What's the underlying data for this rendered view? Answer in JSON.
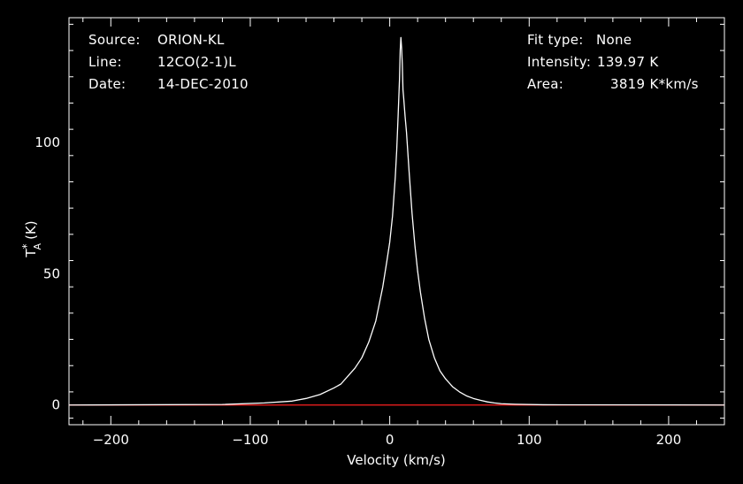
{
  "header": {
    "source_label": "Source:",
    "source_value": "ORION-KL",
    "line_label": "Line:",
    "line_value": "12CO(2-1)L",
    "date_label": "Date:",
    "date_value": "14-DEC-2010",
    "fit_label": "Fit type:",
    "fit_value": "None",
    "intensity_label": "Intensity:",
    "intensity_value": "139.97 K",
    "area_label": "Area:",
    "area_value": "3819 K*km/s"
  },
  "colors": {
    "background": "#000000",
    "spectrum": "#ffffff",
    "baseline": "#ff2020",
    "axes": "#ffffff"
  },
  "chart_data": {
    "type": "line",
    "xlabel": "Velocity (km/s)",
    "ylabel_main": "T",
    "ylabel_sub": "A",
    "ylabel_sup": "*",
    "ylabel_unit": "(K)",
    "xlim": [
      -230,
      240
    ],
    "ylim": [
      -7.5,
      147.5
    ],
    "xticks": [
      -200,
      -100,
      0,
      100,
      200
    ],
    "xtick_labels": [
      "−200",
      "−100",
      "0",
      "100",
      "200"
    ],
    "yticks": [
      0,
      50,
      100
    ],
    "ytick_labels": [
      "0",
      "50",
      "100"
    ],
    "grid": false,
    "series": [
      {
        "x": [
          -230,
          -120,
          -90,
          -70,
          -60,
          -50,
          -40,
          -35,
          -30,
          -25,
          -20,
          -15,
          -10,
          -5,
          -2,
          0,
          2,
          4,
          5,
          6,
          7,
          7.5,
          8,
          8.5,
          9,
          9.5,
          10,
          11,
          12,
          14,
          16,
          18,
          20,
          22,
          25,
          28,
          32,
          36,
          40,
          45,
          50,
          55,
          60,
          65,
          70,
          75,
          80,
          90,
          110,
          240
        ],
        "y": [
          0,
          0.2,
          0.8,
          1.5,
          2.5,
          4,
          6.5,
          8,
          11,
          14,
          18,
          24,
          32,
          45,
          55,
          62,
          72,
          87,
          97,
          110,
          124,
          135,
          139.97,
          136,
          130,
          120,
          117,
          110,
          104,
          88,
          73,
          61,
          51,
          43,
          33,
          25,
          18,
          13,
          10,
          7,
          5,
          3.5,
          2.5,
          1.8,
          1.2,
          0.8,
          0.5,
          0.3,
          0.1,
          0
        ]
      },
      {
        "x": [
          -230,
          240
        ],
        "y": [
          0,
          0
        ]
      }
    ]
  }
}
